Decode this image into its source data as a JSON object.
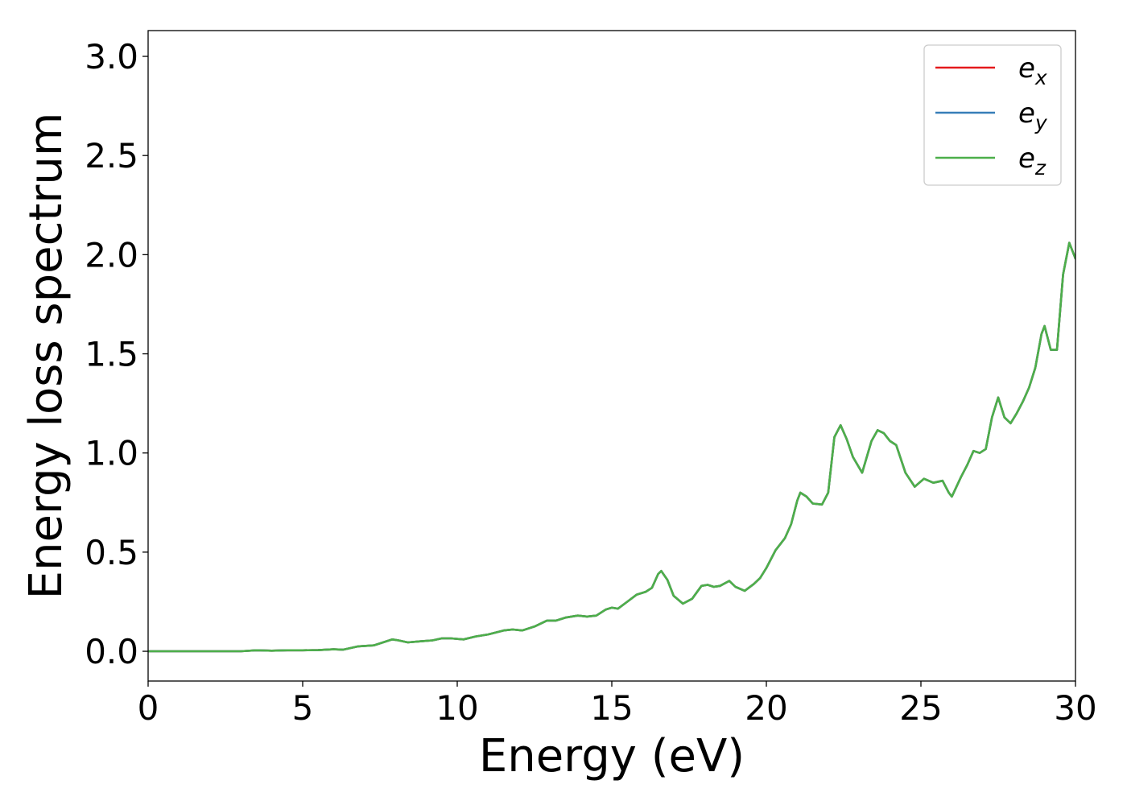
{
  "chart_data": {
    "type": "line",
    "title": "",
    "xlabel": "Energy (eV)",
    "ylabel": "Energy loss spectrum",
    "xlim": [
      0,
      30
    ],
    "ylim": [
      -0.15,
      3.13
    ],
    "xticks": [
      "0",
      "5",
      "10",
      "15",
      "20",
      "25",
      "30"
    ],
    "yticks": [
      "0.0",
      "0.5",
      "1.0",
      "1.5",
      "2.0",
      "2.5",
      "3.0"
    ],
    "grid": false,
    "legend": {
      "placement": "top-right",
      "entries": [
        {
          "symbol": "e",
          "subscript": "x",
          "color": "#e41a1c"
        },
        {
          "symbol": "e",
          "subscript": "y",
          "color": "#377eb8"
        },
        {
          "symbol": "e",
          "subscript": "z",
          "color": "#4daf4a"
        }
      ]
    },
    "series": [
      {
        "legend_index": 0,
        "color": "#e41a1c",
        "x": [
          0,
          1,
          2,
          3,
          3.5,
          4,
          4.5,
          5,
          5.5,
          6,
          6.3,
          6.8,
          7.3,
          7.6,
          7.9,
          8.1,
          8.4,
          8.8,
          9.2,
          9.5,
          9.8,
          10.2,
          10.6,
          11,
          11.5,
          11.8,
          12.1,
          12.5,
          12.9,
          13.2,
          13.5,
          13.9,
          14.2,
          14.5,
          14.8,
          15,
          15.2,
          15.5,
          15.8,
          16.1,
          16.3,
          16.5,
          16.6,
          16.8,
          17,
          17.3,
          17.6,
          17.9,
          18.1,
          18.3,
          18.5,
          18.8,
          19,
          19.3,
          19.6,
          19.8,
          20,
          20.3,
          20.6,
          20.8,
          21,
          21.1,
          21.3,
          21.5,
          21.8,
          22,
          22.2,
          22.4,
          22.6,
          22.8,
          23.1,
          23.4,
          23.6,
          23.8,
          24,
          24.2,
          24.5,
          24.8,
          25.1,
          25.4,
          25.7,
          25.9,
          26,
          26.3,
          26.5,
          26.7,
          26.9,
          27.1,
          27.3,
          27.5,
          27.7,
          27.9,
          28.1,
          28.3,
          28.5,
          28.7,
          28.9,
          29,
          29.2,
          29.4,
          29.6,
          29.8,
          30
        ],
        "y": [
          0,
          0,
          0,
          0,
          0.005,
          0.003,
          0.005,
          0.005,
          0.006,
          0.01,
          0.008,
          0.025,
          0.03,
          0.045,
          0.06,
          0.055,
          0.045,
          0.05,
          0.055,
          0.065,
          0.065,
          0.06,
          0.075,
          0.085,
          0.105,
          0.11,
          0.105,
          0.125,
          0.155,
          0.155,
          0.17,
          0.18,
          0.175,
          0.18,
          0.21,
          0.22,
          0.215,
          0.25,
          0.285,
          0.3,
          0.32,
          0.39,
          0.405,
          0.36,
          0.28,
          0.24,
          0.265,
          0.33,
          0.335,
          0.325,
          0.33,
          0.355,
          0.325,
          0.305,
          0.34,
          0.37,
          0.42,
          0.51,
          0.57,
          0.64,
          0.76,
          0.8,
          0.78,
          0.745,
          0.74,
          0.8,
          1.08,
          1.14,
          1.07,
          0.98,
          0.9,
          1.06,
          1.115,
          1.1,
          1.06,
          1.04,
          0.9,
          0.83,
          0.87,
          0.85,
          0.86,
          0.8,
          0.78,
          0.88,
          0.94,
          1.01,
          1.0,
          1.02,
          1.18,
          1.28,
          1.18,
          1.15,
          1.2,
          1.26,
          1.33,
          1.43,
          1.6,
          1.64,
          1.52,
          1.52,
          1.9,
          2.06,
          1.98
        ]
      },
      {
        "legend_index": 1,
        "color": "#377eb8",
        "x": [
          0,
          1,
          2,
          3,
          3.5,
          4,
          4.5,
          5,
          5.5,
          6,
          6.3,
          6.8,
          7.3,
          7.6,
          7.9,
          8.1,
          8.4,
          8.8,
          9.2,
          9.5,
          9.8,
          10.2,
          10.6,
          11,
          11.5,
          11.8,
          12.1,
          12.5,
          12.9,
          13.2,
          13.5,
          13.9,
          14.2,
          14.5,
          14.8,
          15,
          15.2,
          15.5,
          15.8,
          16.1,
          16.3,
          16.5,
          16.6,
          16.8,
          17,
          17.3,
          17.6,
          17.9,
          18.1,
          18.3,
          18.5,
          18.8,
          19,
          19.3,
          19.6,
          19.8,
          20,
          20.3,
          20.6,
          20.8,
          21,
          21.1,
          21.3,
          21.5,
          21.8,
          22,
          22.2,
          22.4,
          22.6,
          22.8,
          23.1,
          23.4,
          23.6,
          23.8,
          24,
          24.2,
          24.5,
          24.8,
          25.1,
          25.4,
          25.7,
          25.9,
          26,
          26.3,
          26.5,
          26.7,
          26.9,
          27.1,
          27.3,
          27.5,
          27.7,
          27.9,
          28.1,
          28.3,
          28.5,
          28.7,
          28.9,
          29,
          29.2,
          29.4,
          29.6,
          29.8,
          30
        ],
        "y": [
          0,
          0,
          0,
          0,
          0.005,
          0.003,
          0.005,
          0.005,
          0.006,
          0.01,
          0.008,
          0.025,
          0.03,
          0.045,
          0.06,
          0.055,
          0.045,
          0.05,
          0.055,
          0.065,
          0.065,
          0.06,
          0.075,
          0.085,
          0.105,
          0.11,
          0.105,
          0.125,
          0.155,
          0.155,
          0.17,
          0.18,
          0.175,
          0.18,
          0.21,
          0.22,
          0.215,
          0.25,
          0.285,
          0.3,
          0.32,
          0.39,
          0.405,
          0.36,
          0.28,
          0.24,
          0.265,
          0.33,
          0.335,
          0.325,
          0.33,
          0.355,
          0.325,
          0.305,
          0.34,
          0.37,
          0.42,
          0.51,
          0.57,
          0.64,
          0.76,
          0.8,
          0.78,
          0.745,
          0.74,
          0.8,
          1.08,
          1.14,
          1.07,
          0.98,
          0.9,
          1.06,
          1.115,
          1.1,
          1.06,
          1.04,
          0.9,
          0.83,
          0.87,
          0.85,
          0.86,
          0.8,
          0.78,
          0.88,
          0.94,
          1.01,
          1.0,
          1.02,
          1.18,
          1.28,
          1.18,
          1.15,
          1.2,
          1.26,
          1.33,
          1.43,
          1.6,
          1.64,
          1.52,
          1.52,
          1.9,
          2.06,
          1.98
        ]
      },
      {
        "legend_index": 2,
        "color": "#4daf4a",
        "x": [
          0,
          1,
          2,
          3,
          3.5,
          4,
          4.5,
          5,
          5.5,
          6,
          6.3,
          6.8,
          7.3,
          7.6,
          7.9,
          8.1,
          8.4,
          8.8,
          9.2,
          9.5,
          9.8,
          10.2,
          10.6,
          11,
          11.5,
          11.8,
          12.1,
          12.5,
          12.9,
          13.2,
          13.5,
          13.9,
          14.2,
          14.5,
          14.8,
          15,
          15.2,
          15.5,
          15.8,
          16.1,
          16.3,
          16.5,
          16.6,
          16.8,
          17,
          17.3,
          17.6,
          17.9,
          18.1,
          18.3,
          18.5,
          18.8,
          19,
          19.3,
          19.6,
          19.8,
          20,
          20.3,
          20.6,
          20.8,
          21,
          21.1,
          21.3,
          21.5,
          21.8,
          22,
          22.2,
          22.4,
          22.6,
          22.8,
          23.1,
          23.4,
          23.6,
          23.8,
          24,
          24.2,
          24.5,
          24.8,
          25.1,
          25.4,
          25.7,
          25.9,
          26,
          26.3,
          26.5,
          26.7,
          26.9,
          27.1,
          27.3,
          27.5,
          27.7,
          27.9,
          28.1,
          28.3,
          28.5,
          28.7,
          28.9,
          29,
          29.2,
          29.4,
          29.6,
          29.8,
          30
        ],
        "y": [
          0,
          0,
          0,
          0,
          0.005,
          0.003,
          0.005,
          0.005,
          0.006,
          0.01,
          0.008,
          0.025,
          0.03,
          0.045,
          0.06,
          0.055,
          0.045,
          0.05,
          0.055,
          0.065,
          0.065,
          0.06,
          0.075,
          0.085,
          0.105,
          0.11,
          0.105,
          0.125,
          0.155,
          0.155,
          0.17,
          0.18,
          0.175,
          0.18,
          0.21,
          0.22,
          0.215,
          0.25,
          0.285,
          0.3,
          0.32,
          0.39,
          0.405,
          0.36,
          0.28,
          0.24,
          0.265,
          0.33,
          0.335,
          0.325,
          0.33,
          0.355,
          0.325,
          0.305,
          0.34,
          0.37,
          0.42,
          0.51,
          0.57,
          0.64,
          0.76,
          0.8,
          0.78,
          0.745,
          0.74,
          0.8,
          1.08,
          1.14,
          1.07,
          0.98,
          0.9,
          1.06,
          1.115,
          1.1,
          1.06,
          1.04,
          0.9,
          0.83,
          0.87,
          0.85,
          0.86,
          0.8,
          0.78,
          0.88,
          0.94,
          1.01,
          1.0,
          1.02,
          1.18,
          1.28,
          1.18,
          1.15,
          1.2,
          1.26,
          1.33,
          1.43,
          1.6,
          1.64,
          1.52,
          1.52,
          1.9,
          2.06,
          1.98
        ]
      }
    ]
  }
}
